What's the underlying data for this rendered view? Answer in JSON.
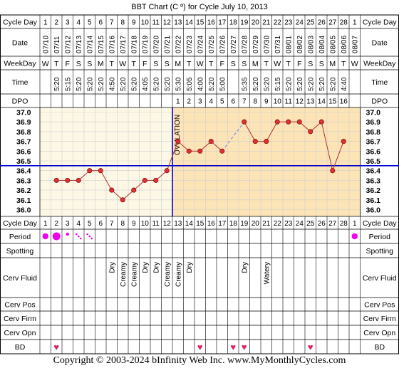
{
  "chart_data": {
    "type": "line",
    "title": "BBT Chart (C º) for Cycle July 10, 2013",
    "unit": "C º",
    "days": [
      1,
      2,
      3,
      4,
      5,
      6,
      7,
      8,
      9,
      10,
      11,
      12,
      13,
      14,
      15,
      16,
      17,
      18,
      19,
      20,
      21,
      22,
      23,
      24,
      25,
      26,
      27,
      28,
      1
    ],
    "dates": [
      "07/10",
      "07/11",
      "07/12",
      "07/13",
      "07/14",
      "07/15",
      "07/16",
      "07/17",
      "07/18",
      "07/19",
      "07/20",
      "07/21",
      "07/22",
      "07/23",
      "07/24",
      "07/25",
      "07/26",
      "07/27",
      "07/28",
      "07/29",
      "07/30",
      "07/31",
      "08/01",
      "08/02",
      "08/03",
      "08/04",
      "08/05",
      "08/06",
      "08/07"
    ],
    "weekdays": [
      "W",
      "T",
      "F",
      "S",
      "S",
      "M",
      "T",
      "W",
      "T",
      "F",
      "S",
      "S",
      "M",
      "T",
      "W",
      "T",
      "F",
      "S",
      "S",
      "M",
      "T",
      "W",
      "T",
      "F",
      "S",
      "S",
      "M",
      "T",
      "W"
    ],
    "times": [
      "",
      "5:20",
      "5:15",
      "5:20",
      "5:20",
      "5:20",
      "4:50",
      "5:20",
      "5:20",
      "4:05",
      "5:20",
      "5:20",
      "5:30",
      "5:05",
      "4:00",
      "5:20",
      "5:00",
      "",
      "5:35",
      "5:20",
      "5:20",
      "5:15",
      "5:20",
      "5:20",
      "5:20",
      "5:20",
      "5:20",
      "4:40",
      ""
    ],
    "dpo": [
      "",
      "",
      "",
      "",
      "",
      "",
      "",
      "",
      "",
      "",
      "",
      "",
      "1",
      "2",
      "3",
      "4",
      "5",
      "6",
      "7",
      "8",
      "9",
      "10",
      "11",
      "12",
      "13",
      "14",
      "15",
      "16",
      ""
    ],
    "temps": [
      null,
      36.3,
      36.3,
      36.3,
      36.4,
      36.4,
      36.2,
      36.1,
      36.2,
      36.3,
      36.3,
      36.4,
      36.7,
      36.6,
      36.6,
      36.7,
      36.6,
      null,
      36.9,
      36.7,
      36.7,
      36.9,
      36.9,
      36.9,
      36.8,
      36.9,
      36.4,
      36.7,
      null
    ],
    "dashed_segments": [
      [
        17,
        19
      ]
    ],
    "ylim": [
      36.0,
      37.0
    ],
    "yticks": [
      "37.0",
      "36.9",
      "36.8",
      "36.7",
      "36.6",
      "36.5",
      "36.4",
      "36.3",
      "36.2",
      "36.1",
      "36.0"
    ],
    "coverline": 36.45,
    "ovulation_after_day": 12,
    "ovulation_label": "OVULATION",
    "grid": true
  },
  "row_labels": {
    "cycle_day": "Cycle Day",
    "date": "Date",
    "weekday": "WeekDay",
    "time": "Time",
    "dpo": "DPO",
    "period": "Period",
    "spotting": "Spotting",
    "cerv_fluid": "Cerv Fluid",
    "cerv_pos": "Cerv Pos",
    "cerv_firm": "Cerv Firm",
    "cerv_opn": "Cerv Opn",
    "bd": "BD"
  },
  "period": [
    {
      "day_index": 0,
      "size": "medium"
    },
    {
      "day_index": 1,
      "size": "large"
    },
    {
      "day_index": 2,
      "size": "small"
    },
    {
      "day_index": 3,
      "size": "dots"
    },
    {
      "day_index": 4,
      "size": "dots"
    },
    {
      "day_index": 28,
      "size": "medium"
    }
  ],
  "cerv_fluid": [
    "",
    "",
    "",
    "",
    "",
    "",
    "Dry",
    "Creamy",
    "Creamy",
    "Dry",
    "Dry",
    "Creamy",
    "Creamy",
    "Dry",
    "",
    "",
    "",
    "",
    "Dry",
    "",
    "Watery",
    "",
    "",
    "",
    "",
    "",
    "",
    "",
    ""
  ],
  "bd_days": [
    2,
    15,
    18,
    19,
    25
  ],
  "bd_symbol": "♥",
  "colors": {
    "pre_ovulation_bg": "#fdf8e6",
    "post_ovulation_bg": "#fce4b6",
    "grid": "#cfcfcf",
    "line": "#b03030",
    "marker": "#e03030",
    "dashed_line": "#8090ee",
    "coverline": "#0000cc",
    "ovulation_line": "#0000cc",
    "period_marker": "#ee00ee",
    "bd_heart": "#dd2266"
  },
  "footer": "Copyright © 2003-2024 bInfinity Web Inc.    www.MyMonthlyCycles.com"
}
